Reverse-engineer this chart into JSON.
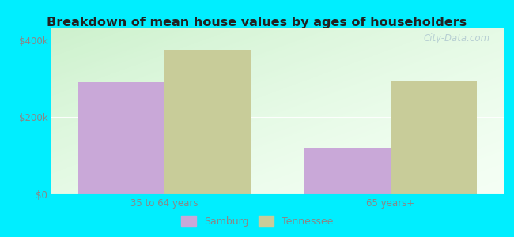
{
  "title": "Breakdown of mean house values by ages of householders",
  "categories": [
    "35 to 64 years",
    "65 years+"
  ],
  "samburg_values": [
    290000,
    120000
  ],
  "tennessee_values": [
    375000,
    295000
  ],
  "samburg_color": "#c9a8d8",
  "tennessee_color": "#c8cc99",
  "background_color": "#00eeff",
  "plot_bg_top": "#f5fff5",
  "plot_bg_bottom": "#d0f0d8",
  "yticks": [
    0,
    200000,
    400000
  ],
  "ytick_labels": [
    "$0",
    "$200k",
    "$400k"
  ],
  "ylim": [
    0,
    430000
  ],
  "bar_width": 0.38,
  "legend_labels": [
    "Samburg",
    "Tennessee"
  ],
  "watermark": "City-Data.com",
  "title_color": "#222222",
  "tick_color": "#888888"
}
